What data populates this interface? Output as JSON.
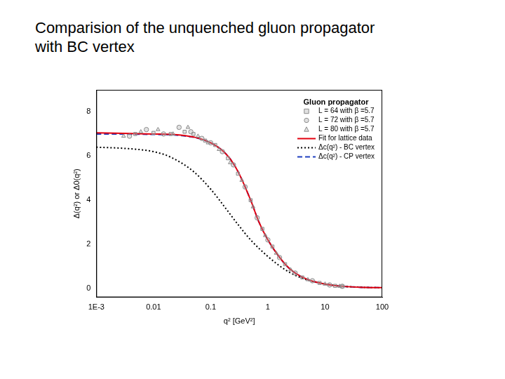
{
  "chart_data": {
    "type": "scatter",
    "title": "Comparision of the unquenched gluon propagator\nwith BC vertex",
    "x_label": "q² [GeV²]",
    "y_label": "Δ(q²) or Δ0(q²)",
    "legend_title": "Gluon propagator",
    "legend": "upper right",
    "grid": false,
    "log": "x",
    "xlim": [
      0.001,
      100
    ],
    "xticks": [
      {
        "value": 0.001,
        "label": "1E-3"
      },
      0.01,
      0.1,
      1,
      10,
      100
    ],
    "ylim": [
      -0.4,
      9
    ],
    "yticks": [
      0,
      2,
      4,
      6,
      8
    ],
    "series": [
      {
        "name": "L = 64 with β =5.7",
        "type": "scatter",
        "marker": "square",
        "color": "#8c8c8c",
        "x": [
          0.0048,
          0.01,
          0.02,
          0.035,
          0.05,
          0.08,
          0.12,
          0.2,
          0.3,
          0.5,
          0.8,
          1.2,
          2,
          4,
          8,
          15,
          20
        ],
        "values": [
          7.0,
          7.05,
          7.0,
          7.1,
          7.0,
          6.7,
          6.5,
          5.9,
          5.2,
          4.0,
          2.7,
          1.9,
          1.1,
          0.5,
          0.25,
          0.12,
          0.09
        ]
      },
      {
        "name": "L = 72 with β =5.7",
        "type": "scatter",
        "marker": "circle",
        "color": "#8c8c8c",
        "x": [
          0.0038,
          0.0075,
          0.015,
          0.028,
          0.045,
          0.07,
          0.1,
          0.16,
          0.25,
          0.4,
          0.65,
          1,
          1.6,
          3,
          6,
          12,
          20
        ],
        "values": [
          6.9,
          7.2,
          7.0,
          7.3,
          7.1,
          6.8,
          6.6,
          6.2,
          5.6,
          4.6,
          3.2,
          2.2,
          1.4,
          0.7,
          0.35,
          0.16,
          0.1
        ]
      },
      {
        "name": "L = 80 with β =5.7",
        "type": "scatter",
        "marker": "triangle",
        "color": "#8c8c8c",
        "x": [
          0.003,
          0.006,
          0.012,
          0.022,
          0.04,
          0.06,
          0.09,
          0.14,
          0.22,
          0.35,
          0.55,
          0.9,
          1.4,
          2.5,
          5,
          10,
          18
        ],
        "values": [
          6.9,
          7.1,
          7.2,
          7.0,
          7.3,
          6.9,
          6.6,
          6.3,
          5.7,
          4.9,
          3.7,
          2.4,
          1.6,
          0.85,
          0.4,
          0.2,
          0.1
        ]
      },
      {
        "name": "Fit for lattice data",
        "type": "line",
        "line_style": "solid",
        "color": "#e3000f",
        "x": [
          0.001,
          0.01,
          0.03,
          0.1,
          0.2,
          0.3,
          0.5,
          0.7,
          1,
          2,
          3,
          5,
          10,
          20,
          50,
          100
        ],
        "values": [
          7.05,
          7.0,
          6.95,
          6.6,
          6.0,
          5.3,
          4.0,
          3.0,
          2.2,
          1.1,
          0.7,
          0.4,
          0.2,
          0.1,
          0.05,
          0.04
        ]
      },
      {
        "name": "Δc(q²) - BC vertex",
        "type": "line",
        "line_style": "dotted",
        "color": "#000000",
        "x": [
          0.001,
          0.003,
          0.01,
          0.02,
          0.05,
          0.1,
          0.2,
          0.3,
          0.5,
          1,
          2,
          3,
          5,
          10,
          20,
          50,
          100
        ],
        "values": [
          6.4,
          6.35,
          6.2,
          5.95,
          5.3,
          4.5,
          3.5,
          2.9,
          2.2,
          1.45,
          0.85,
          0.6,
          0.38,
          0.2,
          0.1,
          0.05,
          0.03
        ]
      },
      {
        "name": "Δc(q²) - CP vertex",
        "type": "line",
        "line_style": "dashed",
        "color": "#1f3fbf",
        "x": [
          0.001,
          0.01,
          0.03,
          0.1,
          0.2,
          0.3,
          0.5,
          0.7,
          1,
          2,
          3,
          5,
          10,
          20,
          50,
          100
        ],
        "values": [
          7.0,
          6.98,
          6.93,
          6.6,
          6.0,
          5.3,
          4.0,
          3.0,
          2.2,
          1.1,
          0.7,
          0.4,
          0.2,
          0.1,
          0.05,
          0.04
        ]
      }
    ]
  }
}
